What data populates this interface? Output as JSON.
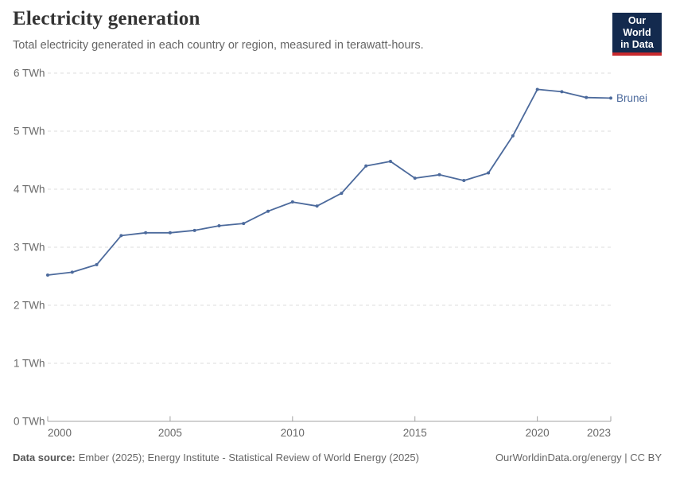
{
  "header": {
    "title": "Electricity generation",
    "subtitle": "Total electricity generated in each country or region, measured in terawatt-hours."
  },
  "logo": {
    "line1": "Our World",
    "line2": "in Data",
    "bg_color": "#132a4e",
    "accent_color": "#c7292d"
  },
  "chart_data": {
    "type": "line",
    "title": "Electricity generation",
    "xlabel": "",
    "ylabel": "",
    "unit": "TWh",
    "xlim": [
      2000,
      2023
    ],
    "ylim": [
      0,
      6
    ],
    "grid": "horizontal-dashed",
    "legend_position": "end-of-line-label",
    "yticks": [
      {
        "value": 0,
        "label": "0 TWh"
      },
      {
        "value": 1,
        "label": "1 TWh"
      },
      {
        "value": 2,
        "label": "2 TWh"
      },
      {
        "value": 3,
        "label": "3 TWh"
      },
      {
        "value": 4,
        "label": "4 TWh"
      },
      {
        "value": 5,
        "label": "5 TWh"
      },
      {
        "value": 6,
        "label": "6 TWh"
      }
    ],
    "xticks": [
      {
        "value": 2000,
        "label": "2000",
        "align": "start"
      },
      {
        "value": 2005,
        "label": "2005",
        "align": "middle"
      },
      {
        "value": 2010,
        "label": "2010",
        "align": "middle"
      },
      {
        "value": 2015,
        "label": "2015",
        "align": "middle"
      },
      {
        "value": 2020,
        "label": "2020",
        "align": "middle"
      },
      {
        "value": 2023,
        "label": "2023",
        "align": "end"
      }
    ],
    "series": [
      {
        "name": "Brunei",
        "color": "#4C6A9C",
        "x": [
          2000,
          2001,
          2002,
          2003,
          2004,
          2005,
          2006,
          2007,
          2008,
          2009,
          2010,
          2011,
          2012,
          2013,
          2014,
          2015,
          2016,
          2017,
          2018,
          2019,
          2020,
          2021,
          2022,
          2023
        ],
        "values": [
          2.52,
          2.57,
          2.7,
          3.2,
          3.25,
          3.25,
          3.29,
          3.37,
          3.41,
          3.62,
          3.78,
          3.71,
          3.93,
          4.4,
          4.48,
          4.19,
          4.25,
          4.15,
          4.28,
          4.92,
          5.72,
          5.68,
          5.58,
          5.57
        ]
      }
    ]
  },
  "footer": {
    "source_label": "Data source:",
    "source_text": "Ember (2025); Energy Institute - Statistical Review of World Energy (2025)",
    "credit": "OurWorldinData.org/energy | CC BY"
  }
}
